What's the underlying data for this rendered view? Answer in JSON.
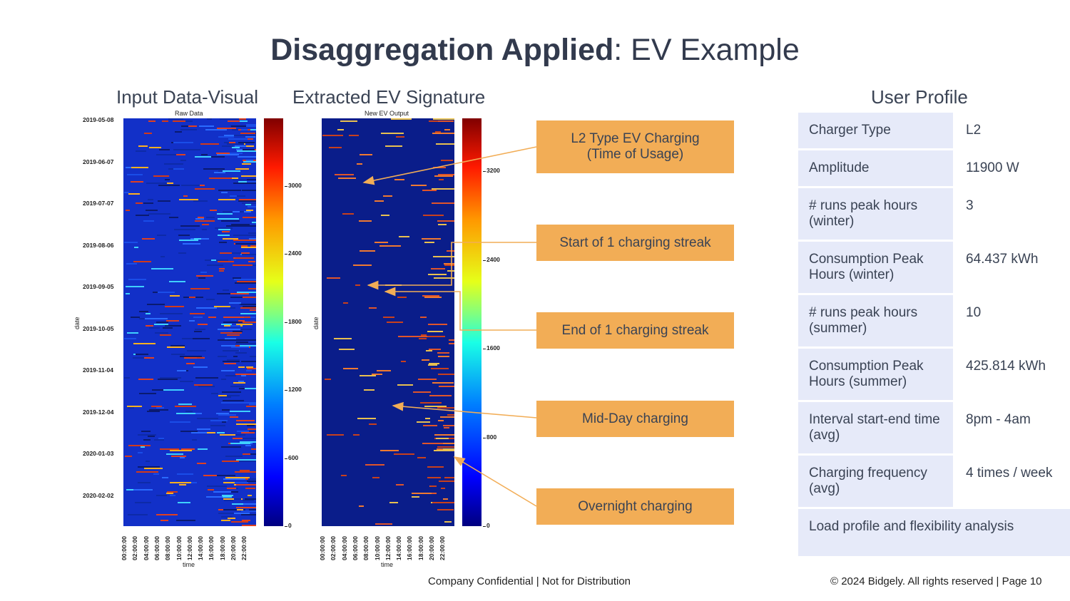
{
  "title": {
    "bold": "Disaggregation Applied",
    "rest": ": EV Example"
  },
  "sections": {
    "input": "Input Data-Visual",
    "extracted": "Extracted EV Signature",
    "profile": "User Profile"
  },
  "raw_chart": {
    "title": "Raw Data",
    "ylabel": "date",
    "xlabel": "time",
    "dates": [
      "2019-05-08",
      "2019-06-07",
      "2019-07-07",
      "2019-08-06",
      "2019-09-05",
      "2019-10-05",
      "2019-11-04",
      "2019-12-04",
      "2020-01-03",
      "2020-02-02"
    ],
    "times": [
      "00:00:00",
      "02:00:00",
      "04:00:00",
      "06:00:00",
      "08:00:00",
      "10:00:00",
      "12:00:00",
      "14:00:00",
      "16:00:00",
      "18:00:00",
      "20:00:00",
      "22:00:00"
    ],
    "colorbar_ticks": [
      "3000",
      "2400",
      "1800",
      "1200",
      "600",
      "0"
    ]
  },
  "ev_chart": {
    "title": "New EV Output",
    "ylabel": "date",
    "xlabel": "time",
    "times": [
      "00:00:00",
      "02:00:00",
      "04:00:00",
      "06:00:00",
      "08:00:00",
      "10:00:00",
      "12:00:00",
      "14:00:00",
      "16:00:00",
      "18:00:00",
      "20:00:00",
      "22:00:00"
    ],
    "colorbar_ticks": [
      "3200",
      "2400",
      "1600",
      "800",
      "0"
    ]
  },
  "callouts": {
    "l2_line1": "L2 Type EV Charging",
    "l2_line2": "(Time of Usage)",
    "start": "Start of 1 charging streak",
    "end": "End of 1 charging streak",
    "midday": "Mid-Day charging",
    "overnight": "Overnight charging"
  },
  "profile": {
    "rows": [
      {
        "key": "Charger Type",
        "value": "L2"
      },
      {
        "key": "Amplitude",
        "value": "11900 W"
      },
      {
        "key": "# runs peak hours (winter)",
        "value": "3"
      },
      {
        "key": "Consumption Peak Hours (winter)",
        "value": "64.437 kWh"
      },
      {
        "key": "# runs peak hours (summer)",
        "value": "10"
      },
      {
        "key": "Consumption Peak Hours (summer)",
        "value": "425.814 kWh"
      },
      {
        "key": "Interval start-end time (avg)",
        "value": "8pm - 4am"
      },
      {
        "key": "Charging frequency (avg)",
        "value": "4 times / week"
      }
    ],
    "footer": "Load profile and flexibility analysis"
  },
  "footer": {
    "confidential": "Company Confidential | Not for Distribution",
    "copyright": "© 2024 Bidgely. All rights reserved | Page 10"
  },
  "colors": {
    "callout": "#f2ad56",
    "profile_key_bg": "#e6eaf9",
    "heatmap_bg": "#0a1d8a",
    "title": "#323a4d"
  }
}
